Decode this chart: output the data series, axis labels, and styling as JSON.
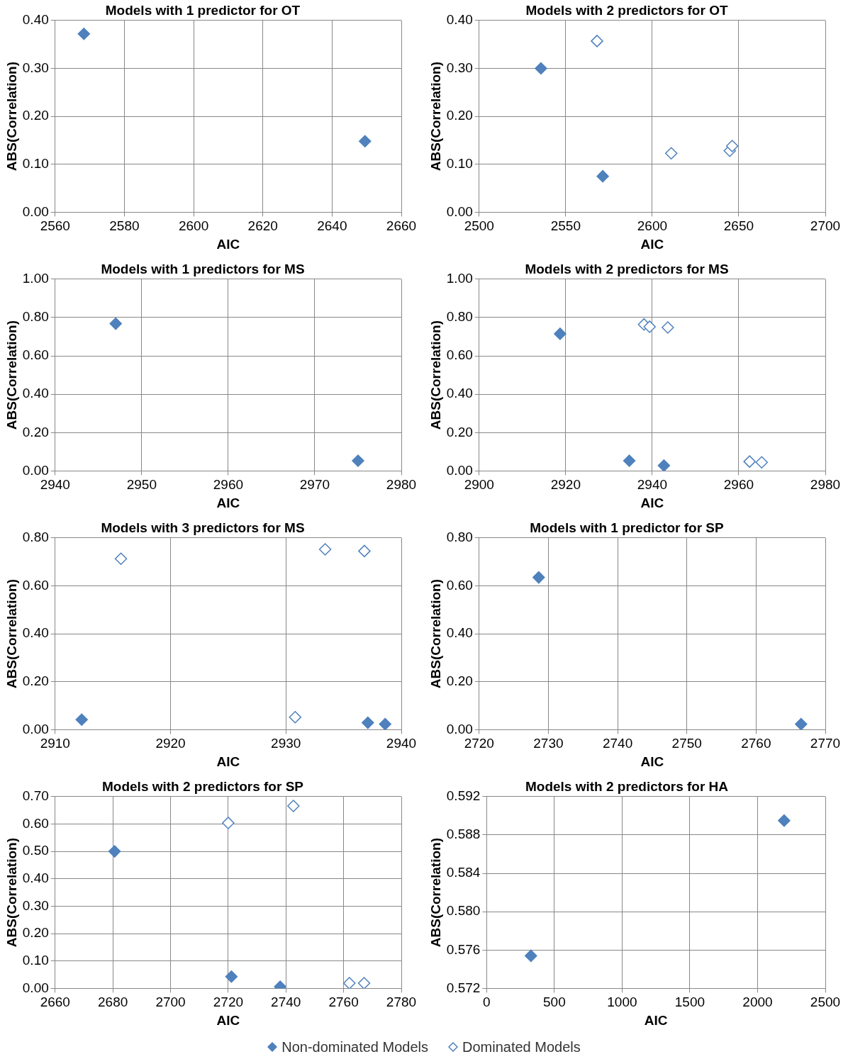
{
  "chart_data": [
    {
      "type": "scatter",
      "title": "Models with 1 predictor for OT",
      "xlabel": "AIC",
      "ylabel": "ABS(Correlation)",
      "xlim": [
        2560,
        2660
      ],
      "xticks": [
        2560,
        2580,
        2600,
        2620,
        2640,
        2660
      ],
      "ylim": [
        0,
        0.4
      ],
      "yticks": [
        {
          "value": 0,
          "label": "0.00"
        },
        {
          "value": 0.1,
          "label": "0.10"
        },
        {
          "value": 0.2,
          "label": "0.20"
        },
        {
          "value": 0.3,
          "label": "0.30"
        },
        {
          "value": 0.4,
          "label": "0.40"
        }
      ],
      "grid": true,
      "marker": "diamond",
      "series": [
        {
          "color": "#4f81bd",
          "x": [
            2568.3,
            2649.5
          ],
          "values": [
            0.372,
            0.148
          ]
        }
      ]
    },
    {
      "type": "scatter",
      "title": "Models with 2 predictors for OT",
      "xlabel": "AIC",
      "ylabel": "ABS(Correlation)",
      "xlim": [
        2500,
        2700
      ],
      "xticks": [
        2500,
        2550,
        2600,
        2650,
        2700
      ],
      "ylim": [
        0,
        0.4
      ],
      "yticks": [
        {
          "value": 0,
          "label": "0.00"
        },
        {
          "value": 0.1,
          "label": "0.10"
        },
        {
          "value": 0.2,
          "label": "0.20"
        },
        {
          "value": 0.3,
          "label": "0.30"
        },
        {
          "value": 0.4,
          "label": "0.40"
        }
      ],
      "grid": true,
      "marker": "diamond",
      "series": [
        {
          "color": "#4f81bd",
          "x": [
            2535.7,
            2571.4
          ],
          "values": [
            0.3,
            0.075
          ]
        },
        {
          "color": "#4f81bd",
          "x": [
            2568.1,
            2611,
            2644.8,
            2646.2
          ],
          "values": [
            0.357,
            0.123,
            0.128,
            0.138
          ]
        }
      ]
    },
    {
      "type": "scatter",
      "title": "Models with 1 predictors for MS",
      "xlabel": "AIC",
      "ylabel": "ABS(Correlation)",
      "xlim": [
        2940,
        2980
      ],
      "xticks": [
        2940,
        2950,
        2960,
        2970,
        2980
      ],
      "ylim": [
        0,
        1
      ],
      "yticks": [
        {
          "value": 0,
          "label": "0.00"
        },
        {
          "value": 0.2,
          "label": "0.20"
        },
        {
          "value": 0.4,
          "label": "0.40"
        },
        {
          "value": 0.6,
          "label": "0.60"
        },
        {
          "value": 0.8,
          "label": "0.80"
        },
        {
          "value": 1,
          "label": "1.00"
        }
      ],
      "grid": true,
      "marker": "diamond",
      "series": [
        {
          "color": "#4f81bd",
          "x": [
            2947,
            2975
          ],
          "values": [
            0.768,
            0.053
          ]
        }
      ]
    },
    {
      "type": "scatter",
      "title": "Models with 2 predictors for MS",
      "xlabel": "AIC",
      "ylabel": "ABS(Correlation)",
      "xlim": [
        2900,
        2980
      ],
      "xticks": [
        2900,
        2920,
        2940,
        2960,
        2980
      ],
      "ylim": [
        0,
        1
      ],
      "yticks": [
        {
          "value": 0,
          "label": "0.00"
        },
        {
          "value": 0.2,
          "label": "0.20"
        },
        {
          "value": 0.4,
          "label": "0.40"
        },
        {
          "value": 0.6,
          "label": "0.60"
        },
        {
          "value": 0.8,
          "label": "0.80"
        },
        {
          "value": 1,
          "label": "1.00"
        }
      ],
      "grid": true,
      "marker": "diamond",
      "series": [
        {
          "color": "#4f81bd",
          "x": [
            2918.7,
            2934.7,
            2942.7
          ],
          "values": [
            0.715,
            0.053,
            0.028
          ]
        },
        {
          "color": "#4f81bd",
          "x": [
            2938.1,
            2939.4,
            2943.6,
            2962.5,
            2965.3
          ],
          "values": [
            0.764,
            0.752,
            0.748,
            0.049,
            0.045
          ]
        }
      ]
    },
    {
      "type": "scatter",
      "title": "Models with 3 predictors for MS",
      "xlabel": "AIC",
      "ylabel": "ABS(Correlation)",
      "xlim": [
        2910,
        2940
      ],
      "xticks": [
        2910,
        2920,
        2930,
        2940
      ],
      "ylim": [
        0,
        0.8
      ],
      "yticks": [
        {
          "value": 0,
          "label": "0.00"
        },
        {
          "value": 0.2,
          "label": "0.20"
        },
        {
          "value": 0.4,
          "label": "0.40"
        },
        {
          "value": 0.6,
          "label": "0.60"
        },
        {
          "value": 0.8,
          "label": "0.80"
        }
      ],
      "grid": true,
      "marker": "diamond",
      "series": [
        {
          "color": "#4f81bd",
          "x": [
            2912.3,
            2937.1,
            2938.6
          ],
          "values": [
            0.042,
            0.029,
            0.023
          ]
        },
        {
          "color": "#4f81bd",
          "x": [
            2915.7,
            2933.4,
            2936.8,
            2930.8
          ],
          "values": [
            0.713,
            0.752,
            0.745,
            0.052
          ]
        }
      ]
    },
    {
      "type": "scatter",
      "title": "Models with 1 predictor for SP",
      "xlabel": "AIC",
      "ylabel": "ABS(Correlation)",
      "xlim": [
        2720,
        2770
      ],
      "xticks": [
        2720,
        2730,
        2740,
        2750,
        2760,
        2770
      ],
      "ylim": [
        0,
        0.8
      ],
      "yticks": [
        {
          "value": 0,
          "label": "0.00"
        },
        {
          "value": 0.2,
          "label": "0.20"
        },
        {
          "value": 0.4,
          "label": "0.40"
        },
        {
          "value": 0.6,
          "label": "0.60"
        },
        {
          "value": 0.8,
          "label": "0.80"
        }
      ],
      "grid": true,
      "marker": "diamond",
      "series": [
        {
          "color": "#4f81bd",
          "x": [
            2728.6,
            2766.5
          ],
          "values": [
            0.635,
            0.023
          ]
        }
      ]
    },
    {
      "type": "scatter",
      "title": "Models with 2 predictors for SP",
      "xlabel": "AIC",
      "ylabel": "ABS(Correlation)",
      "xlim": [
        2660,
        2780
      ],
      "xticks": [
        2660,
        2680,
        2700,
        2720,
        2740,
        2760,
        2780
      ],
      "ylim": [
        0,
        0.7
      ],
      "yticks": [
        {
          "value": 0,
          "label": "0.00"
        },
        {
          "value": 0.1,
          "label": "0.10"
        },
        {
          "value": 0.2,
          "label": "0.20"
        },
        {
          "value": 0.3,
          "label": "0.30"
        },
        {
          "value": 0.4,
          "label": "0.40"
        },
        {
          "value": 0.5,
          "label": "0.50"
        },
        {
          "value": 0.6,
          "label": "0.60"
        },
        {
          "value": 0.7,
          "label": "0.70"
        }
      ],
      "grid": true,
      "marker": "diamond",
      "legend": "bottom",
      "series": [
        {
          "name": "Non-dominated Models",
          "color": "#4f81bd",
          "x": [
            2680.6,
            2721.1,
            2738
          ],
          "values": [
            0.5,
            0.043,
            0.006
          ]
        },
        {
          "name": "Dominated Models",
          "color": "#4f81bd",
          "x": [
            2720,
            2742.6,
            2762,
            2767.1
          ],
          "values": [
            0.604,
            0.666,
            0.019,
            0.019
          ]
        }
      ]
    },
    {
      "type": "scatter",
      "title": "Models with 2 predictors for HA",
      "xlabel": "AIC",
      "ylabel": "ABS(Correlation)",
      "xlim": [
        0,
        2500
      ],
      "xticks": [
        0,
        500,
        1000,
        1500,
        2000,
        2500
      ],
      "ylim": [
        0.572,
        0.592
      ],
      "yticks": [
        0.572,
        0.576,
        {
          "value": 0.58,
          "label": "0.580"
        },
        0.584,
        0.588,
        0.592
      ],
      "grid": true,
      "marker": "diamond",
      "series": [
        {
          "color": "#4f81bd",
          "x": [
            327,
            2196
          ],
          "values": [
            0.5754,
            0.5895
          ]
        }
      ]
    }
  ]
}
